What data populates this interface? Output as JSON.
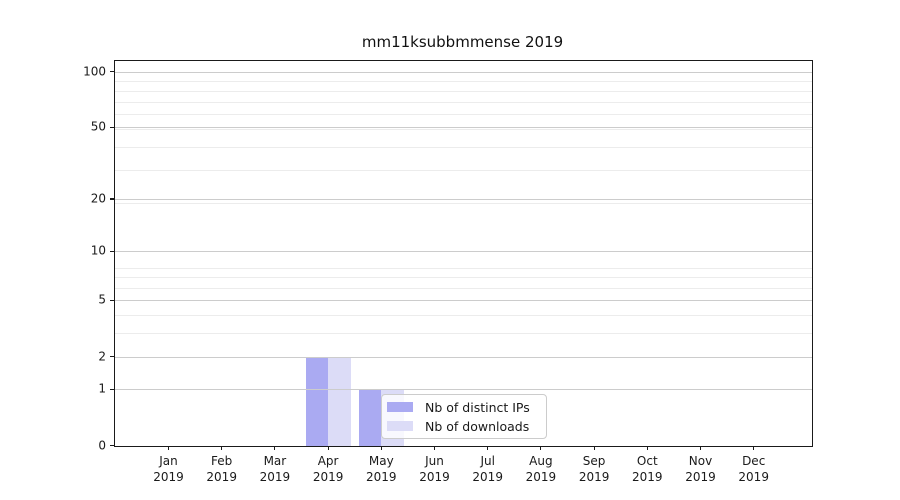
{
  "chart_data": {
    "type": "bar",
    "title": "mm11ksubbmmense 2019",
    "x_categories": [
      "Jan",
      "Feb",
      "Mar",
      "Apr",
      "May",
      "Jun",
      "Jul",
      "Aug",
      "Sep",
      "Oct",
      "Nov",
      "Dec"
    ],
    "x_year": "2019",
    "series": [
      {
        "name": "Nb of distinct IPs",
        "color": "#aaaaf2",
        "values": [
          0,
          0,
          0,
          2,
          1,
          0,
          0,
          0,
          0,
          0,
          0,
          0
        ]
      },
      {
        "name": "Nb of downloads",
        "color": "#dcdcf7",
        "values": [
          0,
          0,
          0,
          2,
          1,
          0,
          0,
          0,
          0,
          0,
          0,
          0
        ]
      }
    ],
    "y_ticks": [
      0,
      1,
      2,
      5,
      10,
      20,
      50,
      100
    ],
    "y_scale": "log1p",
    "ylim": [
      0,
      114
    ],
    "xlabel": "",
    "ylabel": "",
    "grid": "both",
    "legend_position": "lower-center",
    "colors": {
      "grid_major": "#cccccc",
      "grid_minor": "#ececec",
      "spine": "#1a1a1a",
      "text": "#1a1a1a"
    }
  }
}
